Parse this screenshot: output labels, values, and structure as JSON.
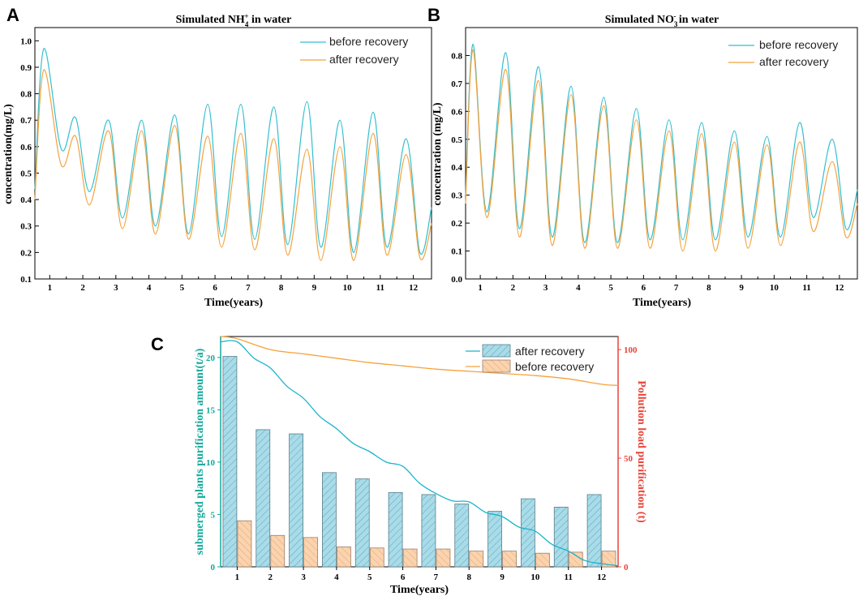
{
  "panels": [
    {
      "label": "A"
    },
    {
      "label": "B"
    },
    {
      "label": "C"
    }
  ],
  "colors": {
    "before": "#33bfd0",
    "after": "#f4a23c",
    "purple_line": "#19b3cc",
    "pollution_line": "#f5a23a",
    "bar_after": "#a9dbe8",
    "bar_before": "#fbd3ae",
    "teal_axis": "#12a89a",
    "red_axis": "#e8443a"
  },
  "chart_data": [
    {
      "type": "line",
      "title_main": "Simulated NH",
      "title_sub": "4",
      "title_sup": "+",
      "title_rest": " in water",
      "xlabel": "Time(years)",
      "ylabel": "concentration(mg/L)",
      "xlim": [
        0.55,
        12.55
      ],
      "ylim": [
        0.1,
        1.05
      ],
      "xticks": [
        "1",
        "2",
        "3",
        "4",
        "5",
        "6",
        "7",
        "8",
        "9",
        "10",
        "11",
        "12"
      ],
      "yticks": [
        "0.1",
        "0.2",
        "0.3",
        "0.4",
        "0.5",
        "0.6",
        "0.7",
        "0.8",
        "0.9",
        "1.0"
      ],
      "legend": [
        "before recovery",
        "after recovery"
      ],
      "series": [
        {
          "name": "before recovery",
          "start": 0.44,
          "peak0": 0.97,
          "trough1": 0.59,
          "peaks": [
            0.71,
            0.7,
            0.7,
            0.72,
            0.76,
            0.76,
            0.75,
            0.77,
            0.7,
            0.73,
            0.63
          ],
          "troughs": [
            0.43,
            0.33,
            0.3,
            0.27,
            0.26,
            0.25,
            0.23,
            0.22,
            0.2,
            0.22,
            0.2
          ],
          "end": 0.37
        },
        {
          "name": "after recovery",
          "start": 0.4,
          "peak0": 0.89,
          "trough1": 0.53,
          "peaks": [
            0.64,
            0.66,
            0.66,
            0.68,
            0.64,
            0.65,
            0.63,
            0.59,
            0.6,
            0.65,
            0.57
          ],
          "troughs": [
            0.38,
            0.29,
            0.27,
            0.25,
            0.22,
            0.21,
            0.19,
            0.17,
            0.17,
            0.19,
            0.18
          ],
          "end": 0.31
        }
      ]
    },
    {
      "type": "line",
      "title_main": "Simulated NO",
      "title_sub": "3",
      "title_sup": "-",
      "title_rest": " in water",
      "xlabel": "Time(years)",
      "ylabel": "concentration (mg/L)",
      "xlim": [
        0.55,
        12.55
      ],
      "ylim": [
        0.0,
        0.9
      ],
      "xticks": [
        "1",
        "2",
        "3",
        "4",
        "5",
        "6",
        "7",
        "8",
        "9",
        "10",
        "11",
        "12"
      ],
      "yticks": [
        "0.0",
        "0.1",
        "0.2",
        "0.3",
        "0.4",
        "0.5",
        "0.6",
        "0.7",
        "0.8"
      ],
      "legend": [
        "before recovery",
        "after recovery"
      ],
      "series": [
        {
          "name": "before recovery",
          "start": 0.3,
          "peaks": [
            0.84,
            0.81,
            0.76,
            0.69,
            0.65,
            0.61,
            0.57,
            0.56,
            0.53,
            0.51,
            0.56,
            0.5
          ],
          "troughs": [
            0.24,
            0.18,
            0.15,
            0.13,
            0.13,
            0.14,
            0.14,
            0.14,
            0.15,
            0.15,
            0.22,
            0.18
          ],
          "end": 0.32
        },
        {
          "name": "after recovery",
          "start": 0.27,
          "peaks": [
            0.82,
            0.75,
            0.71,
            0.66,
            0.62,
            0.57,
            0.53,
            0.52,
            0.49,
            0.48,
            0.49,
            0.42
          ],
          "troughs": [
            0.22,
            0.15,
            0.12,
            0.11,
            0.11,
            0.11,
            0.1,
            0.1,
            0.11,
            0.12,
            0.17,
            0.15
          ],
          "end": 0.27
        }
      ]
    },
    {
      "type": "bar",
      "xlabel": "Time(years)",
      "ylabel_left": "submerged plants purification amount(t/a)",
      "ylabel_right": "Pollution load purification (t)",
      "categories": [
        "1",
        "2",
        "3",
        "4",
        "5",
        "6",
        "7",
        "8",
        "9",
        "10",
        "11",
        "12"
      ],
      "ylim_left": [
        0,
        22
      ],
      "ylim_right": [
        0,
        106
      ],
      "yticks_left": [
        "0",
        "5",
        "10",
        "15",
        "20"
      ],
      "yticks_right": [
        "0",
        "50",
        "100"
      ],
      "legend": [
        "after recovery",
        "before recovery"
      ],
      "bars_after": [
        20.1,
        13.1,
        12.7,
        9.0,
        8.4,
        7.1,
        6.9,
        6.0,
        5.3,
        6.5,
        5.7,
        6.9
      ],
      "bars_before": [
        4.4,
        3.0,
        2.8,
        1.9,
        1.8,
        1.7,
        1.7,
        1.5,
        1.5,
        1.3,
        1.4,
        1.5
      ],
      "line_after_left": [
        21.5,
        19.0,
        16.1,
        13.2,
        11.0,
        9.6,
        7.0,
        6.2,
        4.8,
        3.4,
        1.5,
        0.3
      ],
      "line_before_right": [
        105,
        100,
        98,
        96,
        94,
        92.5,
        91,
        90,
        89,
        88,
        86.5,
        84
      ]
    }
  ]
}
